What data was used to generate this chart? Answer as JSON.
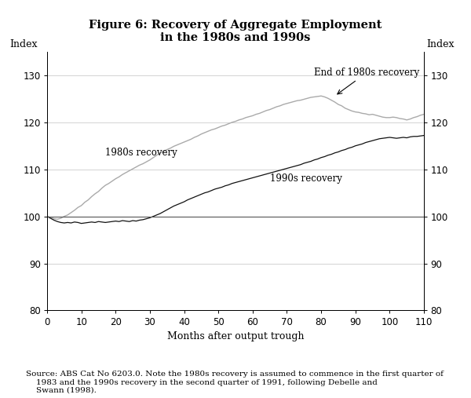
{
  "title_line1": "Figure 6: Recovery of Aggregate Employment",
  "title_line2": "in the 1980s and 1990s",
  "xlabel": "Months after output trough",
  "ylabel_left": "Index",
  "ylabel_right": "Index",
  "xlim": [
    0,
    110
  ],
  "ylim": [
    80,
    135
  ],
  "yticks": [
    80,
    90,
    100,
    110,
    120,
    130
  ],
  "xticks": [
    0,
    10,
    20,
    30,
    40,
    50,
    60,
    70,
    80,
    90,
    100,
    110
  ],
  "source_text": "Source: ABS Cat No 6203.0. Note the 1980s recovery is assumed to commence in the first quarter of\n    1983 and the 1990s recovery in the second quarter of 1991, following Debelle and\n    Swann (1998).",
  "color_1980s": "#aaaaaa",
  "color_1990s": "#111111",
  "hline_y": 100,
  "data_1980s_x": [
    0,
    1,
    2,
    3,
    4,
    5,
    6,
    7,
    8,
    9,
    10,
    11,
    12,
    13,
    14,
    15,
    16,
    17,
    18,
    19,
    20,
    21,
    22,
    23,
    24,
    25,
    26,
    27,
    28,
    29,
    30,
    31,
    32,
    33,
    34,
    35,
    36,
    37,
    38,
    39,
    40,
    41,
    42,
    43,
    44,
    45,
    46,
    47,
    48,
    49,
    50,
    51,
    52,
    53,
    54,
    55,
    56,
    57,
    58,
    59,
    60,
    61,
    62,
    63,
    64,
    65,
    66,
    67,
    68,
    69,
    70,
    71,
    72,
    73,
    74,
    75,
    76,
    77,
    78,
    79,
    80,
    81,
    82,
    83,
    84,
    85,
    86,
    87,
    88,
    89,
    90,
    91,
    92,
    93,
    94,
    95,
    96,
    97,
    98,
    99,
    100,
    101,
    102,
    103,
    104,
    105,
    106,
    107,
    108,
    109,
    110
  ],
  "data_1980s_y": [
    100,
    99.8,
    99.5,
    99.4,
    99.6,
    100.0,
    100.3,
    100.8,
    101.3,
    101.9,
    102.3,
    103.0,
    103.5,
    104.2,
    104.8,
    105.3,
    106.0,
    106.6,
    107.0,
    107.5,
    108.0,
    108.4,
    108.9,
    109.3,
    109.7,
    110.1,
    110.5,
    110.9,
    111.2,
    111.6,
    112.0,
    112.5,
    113.0,
    113.5,
    113.8,
    114.2,
    114.5,
    114.9,
    115.2,
    115.5,
    115.8,
    116.1,
    116.4,
    116.8,
    117.1,
    117.5,
    117.8,
    118.1,
    118.4,
    118.6,
    118.9,
    119.2,
    119.4,
    119.7,
    120.0,
    120.2,
    120.5,
    120.7,
    121.0,
    121.2,
    121.4,
    121.7,
    121.9,
    122.2,
    122.5,
    122.7,
    123.0,
    123.3,
    123.5,
    123.8,
    124.0,
    124.2,
    124.4,
    124.6,
    124.7,
    124.9,
    125.1,
    125.3,
    125.4,
    125.5,
    125.6,
    125.4,
    125.1,
    124.7,
    124.3,
    123.8,
    123.5,
    123.0,
    122.7,
    122.4,
    122.2,
    122.1,
    121.9,
    121.8,
    121.6,
    121.7,
    121.5,
    121.3,
    121.1,
    121.0,
    121.0,
    121.1,
    121.0,
    120.8,
    120.7,
    120.5,
    120.7,
    121.0,
    121.2,
    121.5,
    121.7
  ],
  "data_1990s_x": [
    0,
    1,
    2,
    3,
    4,
    5,
    6,
    7,
    8,
    9,
    10,
    11,
    12,
    13,
    14,
    15,
    16,
    17,
    18,
    19,
    20,
    21,
    22,
    23,
    24,
    25,
    26,
    27,
    28,
    29,
    30,
    31,
    32,
    33,
    34,
    35,
    36,
    37,
    38,
    39,
    40,
    41,
    42,
    43,
    44,
    45,
    46,
    47,
    48,
    49,
    50,
    51,
    52,
    53,
    54,
    55,
    56,
    57,
    58,
    59,
    60,
    61,
    62,
    63,
    64,
    65,
    66,
    67,
    68,
    69,
    70,
    71,
    72,
    73,
    74,
    75,
    76,
    77,
    78,
    79,
    80,
    81,
    82,
    83,
    84,
    85,
    86,
    87,
    88,
    89,
    90,
    91,
    92,
    93,
    94,
    95,
    96,
    97,
    98,
    99,
    100,
    101,
    102,
    103,
    104,
    105,
    106,
    107,
    108,
    109,
    110
  ],
  "data_1990s_y": [
    100,
    99.6,
    99.2,
    98.9,
    98.7,
    98.6,
    98.7,
    98.6,
    98.8,
    98.7,
    98.5,
    98.6,
    98.7,
    98.8,
    98.7,
    98.9,
    98.8,
    98.7,
    98.8,
    98.9,
    99.0,
    98.9,
    99.1,
    99.0,
    98.9,
    99.1,
    99.0,
    99.2,
    99.3,
    99.5,
    99.7,
    100.0,
    100.3,
    100.6,
    101.0,
    101.4,
    101.8,
    102.2,
    102.5,
    102.8,
    103.1,
    103.5,
    103.8,
    104.1,
    104.4,
    104.7,
    105.0,
    105.2,
    105.5,
    105.8,
    106.0,
    106.2,
    106.5,
    106.7,
    107.0,
    107.2,
    107.4,
    107.6,
    107.8,
    108.0,
    108.2,
    108.4,
    108.6,
    108.8,
    109.0,
    109.2,
    109.4,
    109.6,
    109.8,
    110.0,
    110.2,
    110.4,
    110.6,
    110.8,
    111.0,
    111.3,
    111.5,
    111.7,
    112.0,
    112.2,
    112.5,
    112.7,
    113.0,
    113.2,
    113.5,
    113.7,
    114.0,
    114.2,
    114.5,
    114.7,
    115.0,
    115.2,
    115.4,
    115.7,
    115.9,
    116.1,
    116.3,
    116.5,
    116.6,
    116.7,
    116.8,
    116.7,
    116.6,
    116.7,
    116.8,
    116.7,
    116.9,
    117.0,
    117.0,
    117.1,
    117.2
  ]
}
